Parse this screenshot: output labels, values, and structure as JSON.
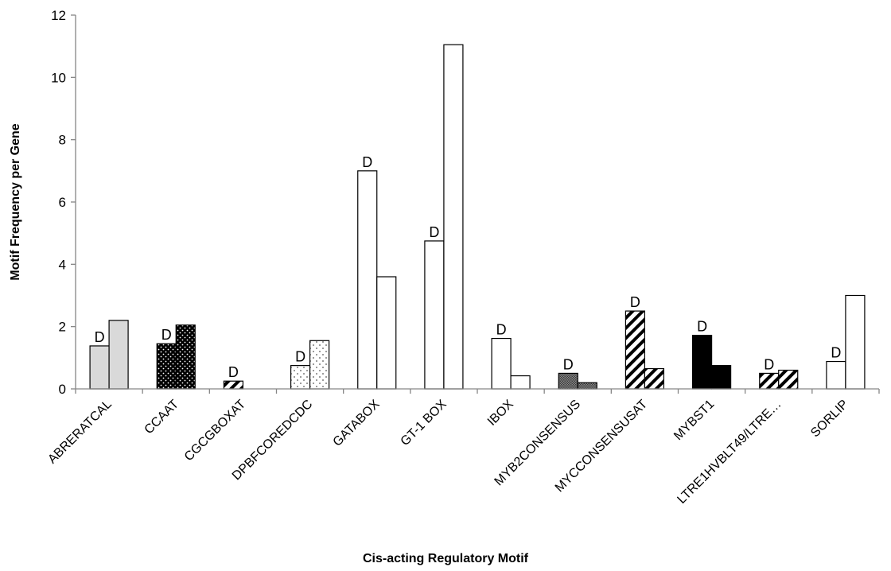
{
  "chart_data": {
    "type": "bar",
    "title": "",
    "xlabel": "Cis-acting Regulatory Motif",
    "ylabel": "Motif Frequency per Gene",
    "ylim": [
      0,
      12
    ],
    "yticks": [
      0,
      2,
      4,
      6,
      8,
      10,
      12
    ],
    "grid": false,
    "legend": "none",
    "categories": [
      "ABRERATCAL",
      "CCAAT",
      "CGCGBOXAT",
      "DPBFCOREDCDC",
      "GATABOX",
      "GT-1 BOX",
      "IBOX",
      "MYB2CONSENSUS",
      "MYCCONSENSUSAT",
      "MYBST1",
      "LTRE1HVBLT49/LTRE…",
      "SORLIP"
    ],
    "series": [
      {
        "values": [
          1.38,
          1.45,
          0.25,
          0.75,
          7.0,
          4.75,
          1.62,
          0.5,
          2.5,
          1.72,
          0.5,
          0.88
        ]
      },
      {
        "values": [
          2.2,
          2.05,
          0,
          1.55,
          3.6,
          11.05,
          0.42,
          0.2,
          0.65,
          0.75,
          0.6,
          3.0
        ]
      }
    ],
    "annotations": [
      "D",
      "D",
      "D",
      "D",
      "D",
      "D",
      "D",
      "D",
      "D",
      "D",
      "D",
      "D"
    ],
    "fills": [
      "lightgray",
      "black-dots",
      "diagonal-stripes",
      "light-dots",
      "white",
      "white",
      "white",
      "gray-crosshatch",
      "diagonal-stripes",
      "solid-black",
      "diagonal-stripes",
      "white"
    ]
  }
}
